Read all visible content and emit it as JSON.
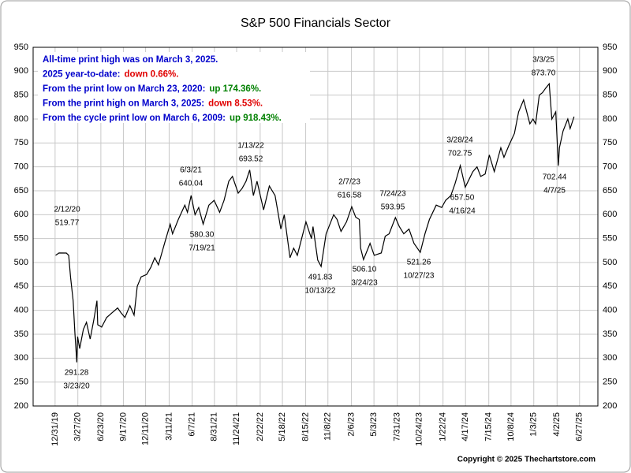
{
  "chart_data": {
    "type": "line",
    "title": "S&P 500 Financials Sector",
    "copyright": "Copyright © 2025 Thechartstore.com",
    "color": "#000000",
    "grid": true,
    "ylim": [
      200,
      950
    ],
    "yticks": [
      200,
      250,
      300,
      350,
      400,
      450,
      500,
      550,
      600,
      650,
      700,
      750,
      800,
      850,
      900,
      950
    ],
    "xlim": [
      "2019-10-08",
      "2025-09-05"
    ],
    "xticks": [
      {
        "value": "2019-12-31",
        "label": "12/31/19"
      },
      {
        "value": "2020-03-27",
        "label": "3/27/20"
      },
      {
        "value": "2020-06-23",
        "label": "6/23/20"
      },
      {
        "value": "2020-09-17",
        "label": "9/17/20"
      },
      {
        "value": "2020-12-11",
        "label": "12/11/20"
      },
      {
        "value": "2021-03-11",
        "label": "3/11/21"
      },
      {
        "value": "2021-06-07",
        "label": "6/7/21"
      },
      {
        "value": "2021-08-31",
        "label": "8/31/21"
      },
      {
        "value": "2021-11-24",
        "label": "11/24/21"
      },
      {
        "value": "2022-02-22",
        "label": "2/22/22"
      },
      {
        "value": "2022-05-18",
        "label": "5/18/22"
      },
      {
        "value": "2022-08-15",
        "label": "8/15/22"
      },
      {
        "value": "2022-11-08",
        "label": "11/8/22"
      },
      {
        "value": "2023-02-06",
        "label": "2/6/23"
      },
      {
        "value": "2023-05-03",
        "label": "5/3/23"
      },
      {
        "value": "2023-07-31",
        "label": "7/31/23"
      },
      {
        "value": "2023-10-24",
        "label": "10/24/23"
      },
      {
        "value": "2024-01-22",
        "label": "1/22/24"
      },
      {
        "value": "2024-04-17",
        "label": "4/17/24"
      },
      {
        "value": "2024-07-15",
        "label": "7/15/24"
      },
      {
        "value": "2024-10-08",
        "label": "10/8/24"
      },
      {
        "value": "2025-01-03",
        "label": "1/3/25"
      },
      {
        "value": "2025-04-02",
        "label": "4/2/25"
      },
      {
        "value": "2025-06-27",
        "label": "6/27/25"
      }
    ],
    "x": [
      "2020-01-02",
      "2020-01-15",
      "2020-02-12",
      "2020-02-21",
      "2020-02-28",
      "2020-03-09",
      "2020-03-16",
      "2020-03-23",
      "2020-03-26",
      "2020-04-03",
      "2020-04-17",
      "2020-04-29",
      "2020-05-13",
      "2020-05-27",
      "2020-06-08",
      "2020-06-11",
      "2020-06-26",
      "2020-07-15",
      "2020-08-05",
      "2020-08-26",
      "2020-09-08",
      "2020-09-23",
      "2020-10-12",
      "2020-10-28",
      "2020-11-09",
      "2020-11-24",
      "2020-12-15",
      "2020-12-31",
      "2021-01-15",
      "2021-01-29",
      "2021-02-24",
      "2021-03-15",
      "2021-03-24",
      "2021-04-15",
      "2021-05-10",
      "2021-05-20",
      "2021-06-03",
      "2021-06-18",
      "2021-07-02",
      "2021-07-19",
      "2021-08-10",
      "2021-08-30",
      "2021-09-20",
      "2021-10-07",
      "2021-10-25",
      "2021-11-08",
      "2021-11-30",
      "2021-12-15",
      "2021-12-30",
      "2022-01-13",
      "2022-01-27",
      "2022-02-10",
      "2022-03-07",
      "2022-03-29",
      "2022-04-20",
      "2022-05-12",
      "2022-05-25",
      "2022-06-16",
      "2022-06-30",
      "2022-07-14",
      "2022-08-16",
      "2022-09-06",
      "2022-09-12",
      "2022-09-30",
      "2022-10-13",
      "2022-11-01",
      "2022-11-30",
      "2022-12-13",
      "2022-12-28",
      "2023-01-18",
      "2023-02-07",
      "2023-02-22",
      "2023-03-08",
      "2023-03-13",
      "2023-03-24",
      "2023-04-18",
      "2023-05-04",
      "2023-05-31",
      "2023-06-15",
      "2023-06-30",
      "2023-07-24",
      "2023-08-08",
      "2023-08-25",
      "2023-09-14",
      "2023-10-03",
      "2023-10-27",
      "2023-11-14",
      "2023-12-01",
      "2023-12-27",
      "2024-01-17",
      "2024-02-01",
      "2024-02-21",
      "2024-03-08",
      "2024-03-28",
      "2024-04-16",
      "2024-05-15",
      "2024-05-31",
      "2024-06-14",
      "2024-07-01",
      "2024-07-17",
      "2024-08-05",
      "2024-08-30",
      "2024-09-11",
      "2024-09-30",
      "2024-10-21",
      "2024-11-06",
      "2024-11-25",
      "2024-12-19",
      "2024-12-31",
      "2025-01-10",
      "2025-01-24",
      "2025-02-05",
      "2025-02-18",
      "2025-03-03",
      "2025-03-13",
      "2025-03-28",
      "2025-04-07",
      "2025-04-11",
      "2025-04-25",
      "2025-05-13",
      "2025-05-22",
      "2025-06-06"
    ],
    "values": [
      515,
      520,
      519.77,
      515,
      470,
      420,
      350,
      291.28,
      345,
      320,
      360,
      375,
      340,
      380,
      420,
      370,
      365,
      385,
      395,
      405,
      395,
      385,
      410,
      390,
      450,
      470,
      475,
      490,
      510,
      495,
      545,
      580,
      560,
      590,
      620,
      605,
      640.04,
      600,
      615,
      580.3,
      620,
      630,
      605,
      630,
      670,
      680,
      645,
      655,
      670,
      693.52,
      640,
      670,
      610,
      660,
      640,
      570,
      600,
      510,
      530,
      515,
      585,
      550,
      575,
      505,
      491.83,
      560,
      600,
      590,
      565,
      585,
      616.58,
      595,
      590,
      530,
      506.1,
      540,
      515,
      520,
      555,
      560,
      593.95,
      575,
      560,
      570,
      540,
      521.26,
      560,
      590,
      620,
      615,
      630,
      640,
      665,
      702.75,
      657.5,
      690,
      700,
      680,
      685,
      725,
      690,
      740,
      720,
      745,
      770,
      815,
      840,
      790,
      800,
      790,
      850,
      855,
      865,
      873.7,
      800,
      815,
      702.44,
      740,
      775,
      800,
      780,
      805
    ],
    "annotations": [
      {
        "x": "2020-02-12",
        "x_label": "2/12/20",
        "y": 519.77
      },
      {
        "x": "2020-03-23",
        "x_label": "3/23/20",
        "y": 291.28
      },
      {
        "x": "2021-06-03",
        "x_label": "6/3/21",
        "y": 640.04
      },
      {
        "x": "2021-07-19",
        "x_label": "7/19/21",
        "y": 580.3,
        "y_label": "580.30"
      },
      {
        "x": "2022-01-13",
        "x_label": "1/13/22",
        "y": 693.52
      },
      {
        "x": "2022-10-13",
        "x_label": "10/13/22",
        "y": 491.83
      },
      {
        "x": "2023-02-07",
        "x_label": "2/7/23",
        "y": 616.58
      },
      {
        "x": "2023-03-24",
        "x_label": "3/24/23",
        "y": 506.1,
        "y_label": "506.10"
      },
      {
        "x": "2023-07-24",
        "x_label": "7/24/23",
        "y": 593.95
      },
      {
        "x": "2023-10-27",
        "x_label": "10/27/23",
        "y": 521.26
      },
      {
        "x": "2024-03-28",
        "x_label": "3/28/24",
        "y": 702.75
      },
      {
        "x": "2024-04-16",
        "x_label": "4/16/24",
        "y": 657.5,
        "y_label": "657.50"
      },
      {
        "x": "2025-03-03",
        "x_label": "3/3/25",
        "y": 873.7,
        "y_label": "873.70"
      },
      {
        "x": "2025-04-07",
        "x_label": "4/7/25",
        "y": 702.44
      }
    ],
    "notes": [
      [
        {
          "text": "All-time print high was on March 3, 2025.",
          "color": "#0000cc"
        }
      ],
      [
        {
          "text": "2025 year-to-date:",
          "color": "#0000cc"
        },
        {
          "text": "down 0.66%.",
          "color": "#e00000"
        }
      ],
      [
        {
          "text": "From the print low on March 23, 2020:",
          "color": "#0000cc"
        },
        {
          "text": "up 174.36%.",
          "color": "#008000"
        }
      ],
      [
        {
          "text": "From the print high on March 3, 2025:",
          "color": "#0000cc"
        },
        {
          "text": "down 8.53%.",
          "color": "#e00000"
        }
      ],
      [
        {
          "text": "From the cycle print low on March 6, 2009:",
          "color": "#0000cc"
        },
        {
          "text": "up 918.43%.",
          "color": "#008000"
        }
      ]
    ]
  }
}
